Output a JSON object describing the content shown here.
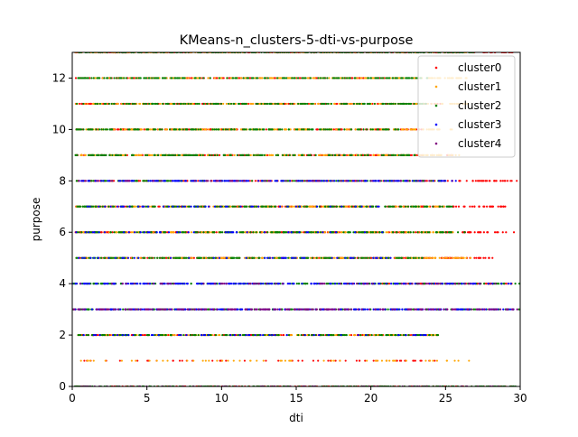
{
  "chart_data": {
    "type": "scatter",
    "title": "KMeans-n_clusters-5-dti-vs-purpose",
    "xlabel": "dti",
    "ylabel": "purpose",
    "xlim": [
      0,
      30
    ],
    "ylim": [
      0,
      13
    ],
    "xticks": [
      0,
      5,
      10,
      15,
      20,
      25,
      30
    ],
    "yticks": [
      0,
      2,
      4,
      6,
      8,
      10,
      12
    ],
    "grid": false,
    "legend_position": "top-right",
    "series": [
      {
        "name": "cluster0",
        "color": "#ff0000",
        "points": [
          {
            "y": 0,
            "xmin": 0.1,
            "xmax": 29.5,
            "gaps": 2
          },
          {
            "y": 1,
            "xmin": 0.2,
            "xmax": 24.5,
            "sparse": true
          },
          {
            "y": 2,
            "xmin": 0.3,
            "xmax": 24.6
          },
          {
            "y": 4,
            "xmin": 19.5,
            "xmax": 29.8
          },
          {
            "y": 5,
            "xmin": 0.2,
            "xmax": 28.2
          },
          {
            "y": 6,
            "xmin": 0.2,
            "xmax": 29.7
          },
          {
            "y": 7,
            "xmin": 0.2,
            "xmax": 29.8
          },
          {
            "y": 8,
            "xmin": 0.2,
            "xmax": 29.9
          },
          {
            "y": 9,
            "xmin": 0.2,
            "xmax": 25.5
          },
          {
            "y": 10,
            "xmin": 0.2,
            "xmax": 23.5
          },
          {
            "y": 11,
            "xmin": 0.2,
            "xmax": 25.0
          },
          {
            "y": 12,
            "xmin": 0.2,
            "xmax": 23.0
          },
          {
            "y": 13,
            "xmin": 0.2,
            "xmax": 29.5
          }
        ]
      },
      {
        "name": "cluster1",
        "color": "#ffa500",
        "points": [
          {
            "y": 1,
            "xmin": 0.2,
            "xmax": 26.9,
            "sparse": true
          },
          {
            "y": 2,
            "xmin": 0.3,
            "xmax": 24.6
          },
          {
            "y": 5,
            "xmin": 0.2,
            "xmax": 26.8
          },
          {
            "y": 6,
            "xmin": 0.2,
            "xmax": 25.5
          },
          {
            "y": 7,
            "xmin": 0.2,
            "xmax": 25.0
          },
          {
            "y": 9,
            "xmin": 0.2,
            "xmax": 26.0
          },
          {
            "y": 10,
            "xmin": 0.2,
            "xmax": 25.5
          },
          {
            "y": 11,
            "xmin": 0.2,
            "xmax": 26.5
          },
          {
            "y": 12,
            "xmin": 0.2,
            "xmax": 26.5
          },
          {
            "y": 13,
            "xmin": 0.2,
            "xmax": 27.0
          }
        ]
      },
      {
        "name": "cluster2",
        "color": "#008000",
        "points": [
          {
            "y": 0,
            "xmin": 0.1,
            "xmax": 29.8
          },
          {
            "y": 2,
            "xmin": 0.3,
            "xmax": 24.5
          },
          {
            "y": 3,
            "xmin": 0.0,
            "xmax": 30.0
          },
          {
            "y": 4,
            "xmin": 0.0,
            "xmax": 30.0
          },
          {
            "y": 5,
            "xmin": 0.2,
            "xmax": 23.5
          },
          {
            "y": 6,
            "xmin": 0.2,
            "xmax": 26.3
          },
          {
            "y": 7,
            "xmin": 0.2,
            "xmax": 25.5
          },
          {
            "y": 8,
            "xmin": 0.2,
            "xmax": 25.0
          },
          {
            "y": 9,
            "xmin": 0.2,
            "xmax": 23.0
          },
          {
            "y": 10,
            "xmin": 0.2,
            "xmax": 22.0
          },
          {
            "y": 11,
            "xmin": 0.2,
            "xmax": 24.0
          },
          {
            "y": 12,
            "xmin": 0.2,
            "xmax": 24.0
          },
          {
            "y": 13,
            "xmin": 0.2,
            "xmax": 27.0
          }
        ]
      },
      {
        "name": "cluster3",
        "color": "#0000ff",
        "points": [
          {
            "y": 2,
            "xmin": 0.3,
            "xmax": 24.0,
            "sparse": true
          },
          {
            "y": 3,
            "xmin": 0.0,
            "xmax": 29.8
          },
          {
            "y": 4,
            "xmin": 0.0,
            "xmax": 29.7
          },
          {
            "y": 5,
            "xmin": 0.2,
            "xmax": 22.0,
            "sparse": true
          },
          {
            "y": 6,
            "xmin": 0.2,
            "xmax": 21.0,
            "sparse": true
          },
          {
            "y": 7,
            "xmin": 0.2,
            "xmax": 21.0,
            "sparse": true
          },
          {
            "y": 8,
            "xmin": 0.2,
            "xmax": 25.8
          }
        ]
      },
      {
        "name": "cluster4",
        "color": "#800080",
        "points": [
          {
            "y": 0,
            "xmin": 0.1,
            "xmax": 29.0,
            "sparse": true
          },
          {
            "y": 3,
            "xmin": 0.0,
            "xmax": 29.8
          },
          {
            "y": 4,
            "xmin": 0.0,
            "xmax": 29.0,
            "sparse": true
          },
          {
            "y": 8,
            "xmin": 0.2,
            "xmax": 25.0,
            "sparse": true
          }
        ]
      }
    ]
  }
}
